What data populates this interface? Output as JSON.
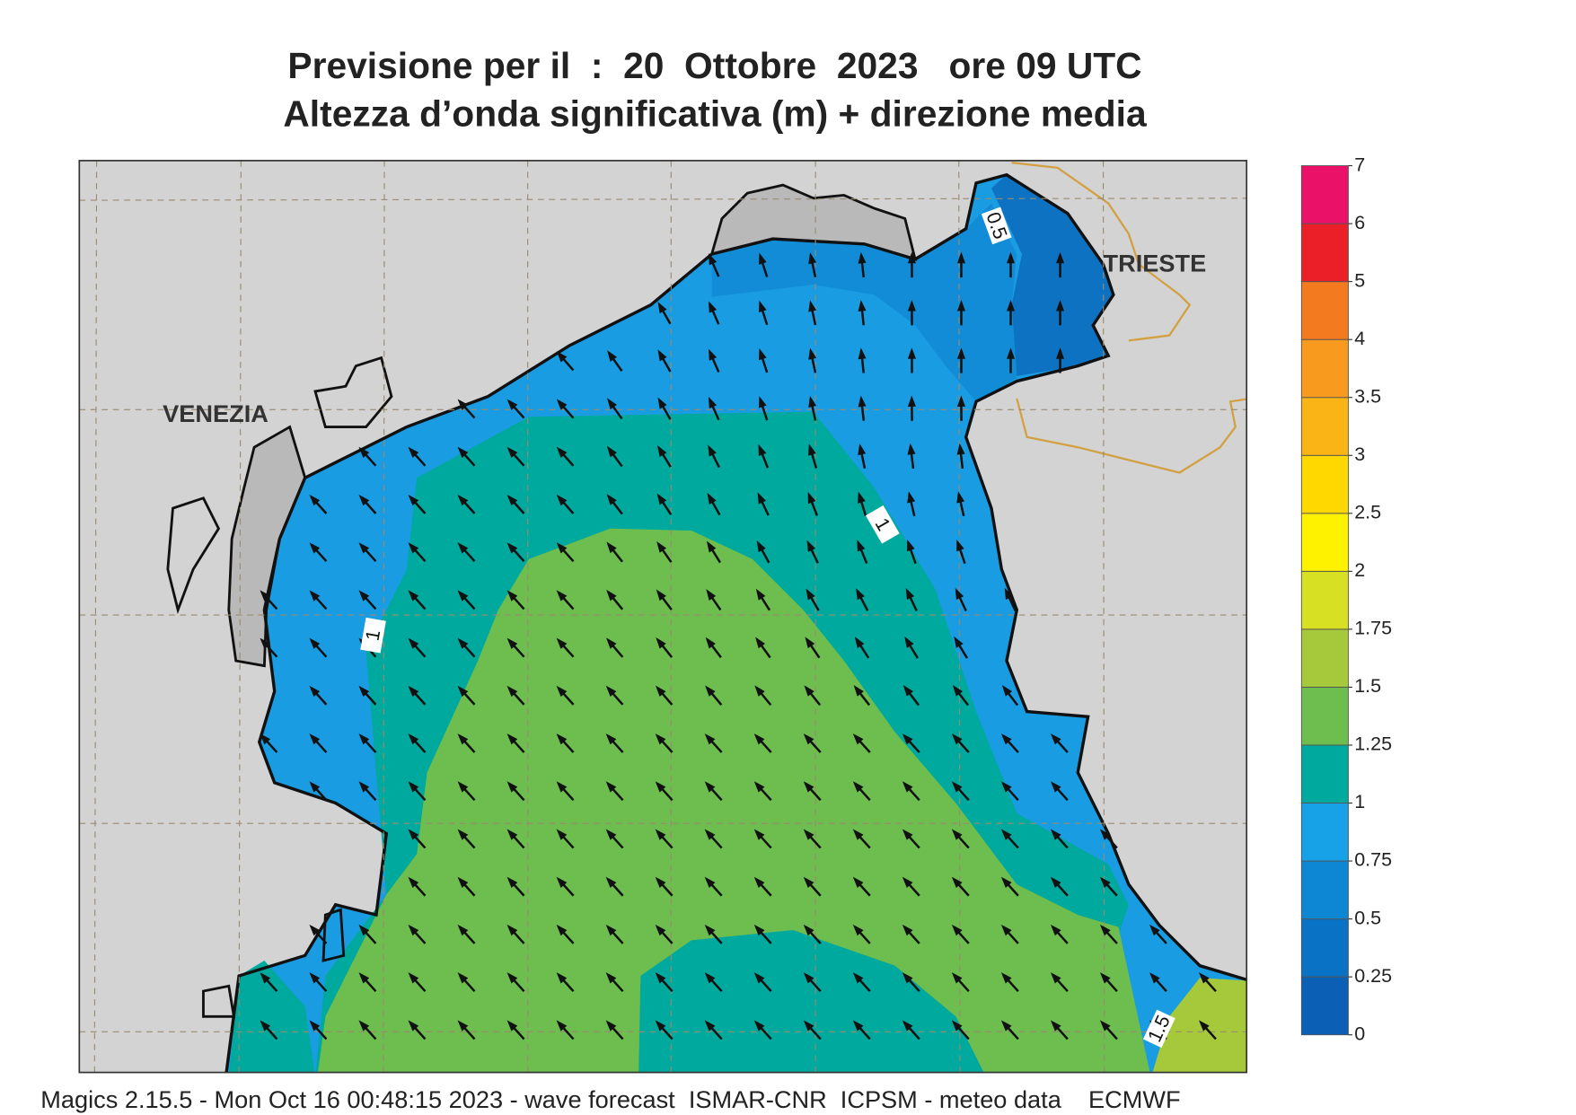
{
  "title": [
    "Previsione per il  :  20  Ottobre  2023   ore 09 UTC",
    "Altezza d’onda significativa (m) + direzione media"
  ],
  "places": [
    "VENEZIA",
    "TRIESTE"
  ],
  "contour_labels": [
    "0.5",
    "1",
    "1",
    "1.5"
  ],
  "colorbar": {
    "levels": [
      0,
      0.25,
      0.5,
      0.75,
      1,
      1.25,
      1.5,
      1.75,
      2,
      2.5,
      3,
      3.5,
      4,
      5,
      6,
      7
    ],
    "colors": [
      "#0b5fb5",
      "#0a72c4",
      "#0d86d4",
      "#17a1e6",
      "#00a99d",
      "#6dbd4f",
      "#a6c93b",
      "#d7e022",
      "#fff200",
      "#ffd800",
      "#fbb416",
      "#f79a1e",
      "#f47a20",
      "#ea1f27",
      "#ea1268"
    ]
  },
  "footer": "Magics 2.15.5 - Mon Oct 16 00:48:15 2023 - wave forecast  ISMAR-CNR  ICPSM - meteo data    ECMWF"
}
